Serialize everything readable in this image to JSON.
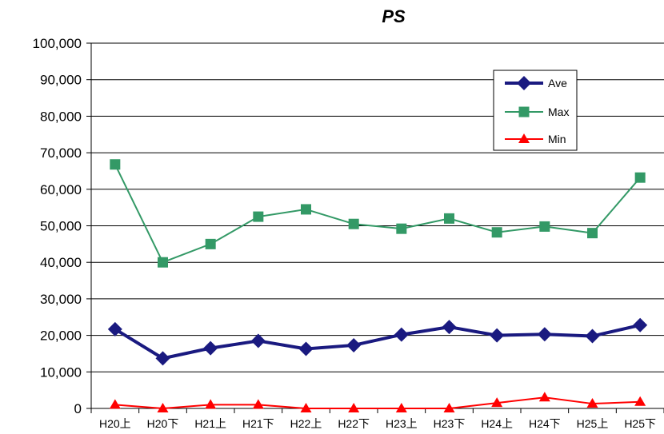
{
  "chart_data": {
    "type": "line",
    "title": "PS",
    "categories": [
      "H20上",
      "H20下",
      "H21上",
      "H21下",
      "H22上",
      "H22下",
      "H23上",
      "H23下",
      "H24上",
      "H24下",
      "H25上",
      "H25下"
    ],
    "ylim": [
      0,
      100000
    ],
    "yticks": [
      0,
      10000,
      20000,
      30000,
      40000,
      50000,
      60000,
      70000,
      80000,
      90000,
      100000
    ],
    "ytick_labels": [
      "0",
      "10,000",
      "20,000",
      "30,000",
      "40,000",
      "50,000",
      "60,000",
      "70,000",
      "80,000",
      "90,000",
      "100,000"
    ],
    "grid": true,
    "legend_position": "top-right",
    "series": [
      {
        "name": "Ave",
        "color": "#1a1a80",
        "marker": "diamond",
        "values": [
          21700,
          13700,
          16500,
          18500,
          16300,
          17300,
          20200,
          22300,
          20000,
          20300,
          19800,
          22800
        ]
      },
      {
        "name": "Max",
        "color": "#339966",
        "marker": "square",
        "values": [
          66800,
          40000,
          45000,
          52500,
          54500,
          50500,
          49200,
          52000,
          48200,
          49800,
          48000,
          63200
        ]
      },
      {
        "name": "Min",
        "color": "#ff0000",
        "marker": "triangle",
        "values": [
          1000,
          0,
          1000,
          1000,
          0,
          0,
          0,
          0,
          1500,
          3000,
          1300,
          1800
        ]
      }
    ]
  }
}
